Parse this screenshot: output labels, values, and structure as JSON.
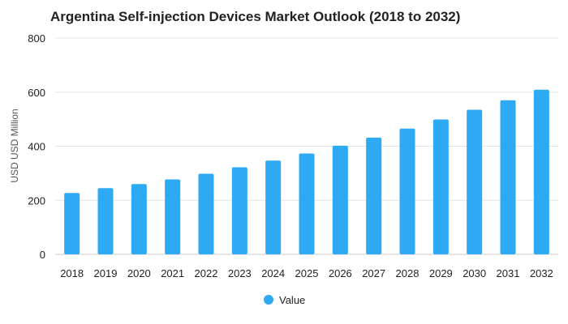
{
  "chart_data": {
    "type": "bar",
    "title": "Argentina Self-injection Devices Market Outlook (2018 to 2032)",
    "xlabel": "",
    "ylabel": "USD USD Million",
    "ylim": [
      0,
      800
    ],
    "yticks": [
      0,
      200,
      400,
      600,
      800
    ],
    "grid": true,
    "legend_position": "bottom-center",
    "categories": [
      "2018",
      "2019",
      "2020",
      "2021",
      "2022",
      "2023",
      "2024",
      "2025",
      "2026",
      "2027",
      "2028",
      "2029",
      "2030",
      "2031",
      "2032"
    ],
    "series": [
      {
        "name": "Value",
        "color": "#2eaaf5",
        "values": [
          227,
          245,
          260,
          277,
          298,
          322,
          347,
          373,
          402,
          432,
          465,
          499,
          535,
          570,
          609
        ]
      }
    ]
  }
}
